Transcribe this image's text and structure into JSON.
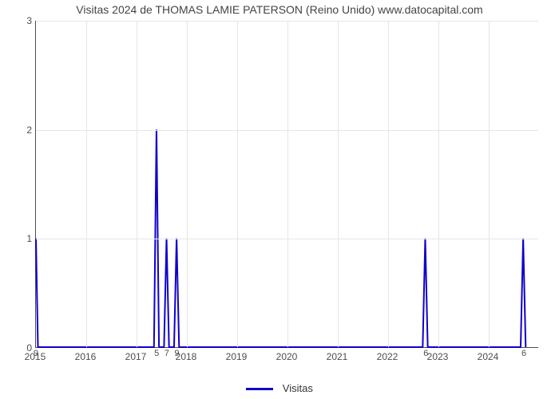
{
  "chart": {
    "type": "line",
    "title": "Visitas 2024 de THOMAS LAMIE PATERSON (Reino Unido) www.datocapital.com",
    "title_fontsize": 14,
    "title_color": "#444444",
    "background_color": "#ffffff",
    "grid_color": "#e6e6e6",
    "axis_color": "#4d4d4d",
    "tick_fontsize": 12,
    "x": {
      "min": 2015,
      "max": 2025,
      "ticks": [
        2015,
        2016,
        2017,
        2018,
        2019,
        2020,
        2021,
        2022,
        2023,
        2024
      ],
      "labels": [
        "2015",
        "2016",
        "2017",
        "2018",
        "2019",
        "2020",
        "2021",
        "2022",
        "2023",
        "2024"
      ]
    },
    "y": {
      "min": 0,
      "max": 3,
      "ticks": [
        0,
        1,
        2,
        3
      ],
      "labels": [
        "0",
        "1",
        "2",
        "3"
      ]
    },
    "series": {
      "color": "#1000cc",
      "line_width": 2,
      "points": [
        [
          2015.0,
          1
        ],
        [
          2015.04,
          0
        ],
        [
          2017.35,
          0
        ],
        [
          2017.4,
          2
        ],
        [
          2017.45,
          0
        ],
        [
          2017.55,
          0
        ],
        [
          2017.6,
          1
        ],
        [
          2017.65,
          0
        ],
        [
          2017.75,
          0
        ],
        [
          2017.8,
          1
        ],
        [
          2017.85,
          0
        ],
        [
          2022.7,
          0
        ],
        [
          2022.75,
          1
        ],
        [
          2022.8,
          0
        ],
        [
          2024.65,
          0
        ],
        [
          2024.7,
          1
        ],
        [
          2024.75,
          0
        ]
      ],
      "data_labels": [
        {
          "x": 2015.0,
          "y": 0,
          "text": "9"
        },
        {
          "x": 2017.4,
          "y": 0,
          "text": "5"
        },
        {
          "x": 2017.6,
          "y": 0,
          "text": "7"
        },
        {
          "x": 2017.8,
          "y": 0,
          "text": "9"
        },
        {
          "x": 2022.75,
          "y": 0,
          "text": "6"
        },
        {
          "x": 2024.7,
          "y": 0,
          "text": "6"
        }
      ]
    },
    "legend": {
      "label": "Visitas",
      "swatch_color": "#1000cc"
    }
  }
}
